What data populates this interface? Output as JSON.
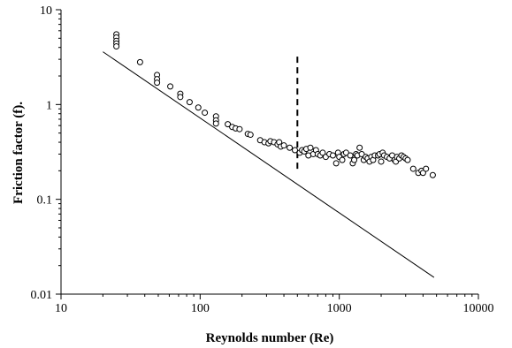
{
  "chart_data": {
    "type": "scatter",
    "title": "",
    "xlabel": "Reynolds number (Re)",
    "ylabel": "Friction factor (f).",
    "x_scale": "log",
    "y_scale": "log",
    "xlim": [
      10,
      10000
    ],
    "ylim": [
      0.01,
      10
    ],
    "x_ticks": [
      10,
      100,
      1000,
      10000
    ],
    "x_tick_labels": [
      "10",
      "100",
      "1000",
      "10000"
    ],
    "y_ticks": [
      0.01,
      0.1,
      1,
      10
    ],
    "y_tick_labels": [
      "0.01",
      "0.1",
      "1",
      "10"
    ],
    "grid": false,
    "legend": "none",
    "series": [
      {
        "type": "scatter",
        "marker": "open-circle",
        "points": [
          [
            25,
            5.5
          ],
          [
            25,
            5.1
          ],
          [
            25,
            4.7
          ],
          [
            25,
            4.4
          ],
          [
            25,
            4.1
          ],
          [
            37,
            2.8
          ],
          [
            49,
            2.05
          ],
          [
            49,
            1.85
          ],
          [
            49,
            1.7
          ],
          [
            61,
            1.55
          ],
          [
            72,
            1.3
          ],
          [
            72,
            1.2
          ],
          [
            84,
            1.06
          ],
          [
            97,
            0.93
          ],
          [
            108,
            0.82
          ],
          [
            130,
            0.75
          ],
          [
            130,
            0.68
          ],
          [
            130,
            0.63
          ],
          [
            158,
            0.62
          ],
          [
            170,
            0.58
          ],
          [
            180,
            0.56
          ],
          [
            192,
            0.55
          ],
          [
            220,
            0.49
          ],
          [
            230,
            0.48
          ],
          [
            270,
            0.42
          ],
          [
            290,
            0.4
          ],
          [
            310,
            0.39
          ],
          [
            320,
            0.41
          ],
          [
            340,
            0.4
          ],
          [
            360,
            0.38
          ],
          [
            370,
            0.4
          ],
          [
            380,
            0.36
          ],
          [
            400,
            0.37
          ],
          [
            440,
            0.35
          ],
          [
            480,
            0.33
          ],
          [
            520,
            0.31
          ],
          [
            540,
            0.33
          ],
          [
            560,
            0.32
          ],
          [
            580,
            0.34
          ],
          [
            600,
            0.29
          ],
          [
            620,
            0.35
          ],
          [
            650,
            0.3
          ],
          [
            680,
            0.33
          ],
          [
            700,
            0.3
          ],
          [
            730,
            0.29
          ],
          [
            760,
            0.31
          ],
          [
            800,
            0.28
          ],
          [
            850,
            0.3
          ],
          [
            900,
            0.29
          ],
          [
            950,
            0.24
          ],
          [
            980,
            0.31
          ],
          [
            1000,
            0.28
          ],
          [
            1050,
            0.26
          ],
          [
            1080,
            0.3
          ],
          [
            1120,
            0.31
          ],
          [
            1200,
            0.29
          ],
          [
            1250,
            0.24
          ],
          [
            1280,
            0.26
          ],
          [
            1320,
            0.3
          ],
          [
            1350,
            0.29
          ],
          [
            1400,
            0.35
          ],
          [
            1450,
            0.3
          ],
          [
            1500,
            0.26
          ],
          [
            1550,
            0.28
          ],
          [
            1600,
            0.27
          ],
          [
            1650,
            0.25
          ],
          [
            1700,
            0.28
          ],
          [
            1750,
            0.26
          ],
          [
            1800,
            0.29
          ],
          [
            1900,
            0.29
          ],
          [
            1950,
            0.3
          ],
          [
            2000,
            0.25
          ],
          [
            2050,
            0.31
          ],
          [
            2100,
            0.29
          ],
          [
            2200,
            0.28
          ],
          [
            2300,
            0.27
          ],
          [
            2400,
            0.29
          ],
          [
            2500,
            0.26
          ],
          [
            2550,
            0.25
          ],
          [
            2600,
            0.28
          ],
          [
            2700,
            0.27
          ],
          [
            2800,
            0.29
          ],
          [
            2900,
            0.28
          ],
          [
            3000,
            0.27
          ],
          [
            3100,
            0.26
          ],
          [
            3400,
            0.21
          ],
          [
            3700,
            0.19
          ],
          [
            3900,
            0.2
          ],
          [
            4000,
            0.19
          ],
          [
            4200,
            0.21
          ],
          [
            4700,
            0.18
          ]
        ]
      },
      {
        "type": "line",
        "points": [
          [
            20,
            3.6
          ],
          [
            4800,
            0.015
          ]
        ]
      },
      {
        "type": "dashed-line",
        "points": [
          [
            500,
            3.2
          ],
          [
            500,
            0.2
          ]
        ]
      }
    ]
  }
}
